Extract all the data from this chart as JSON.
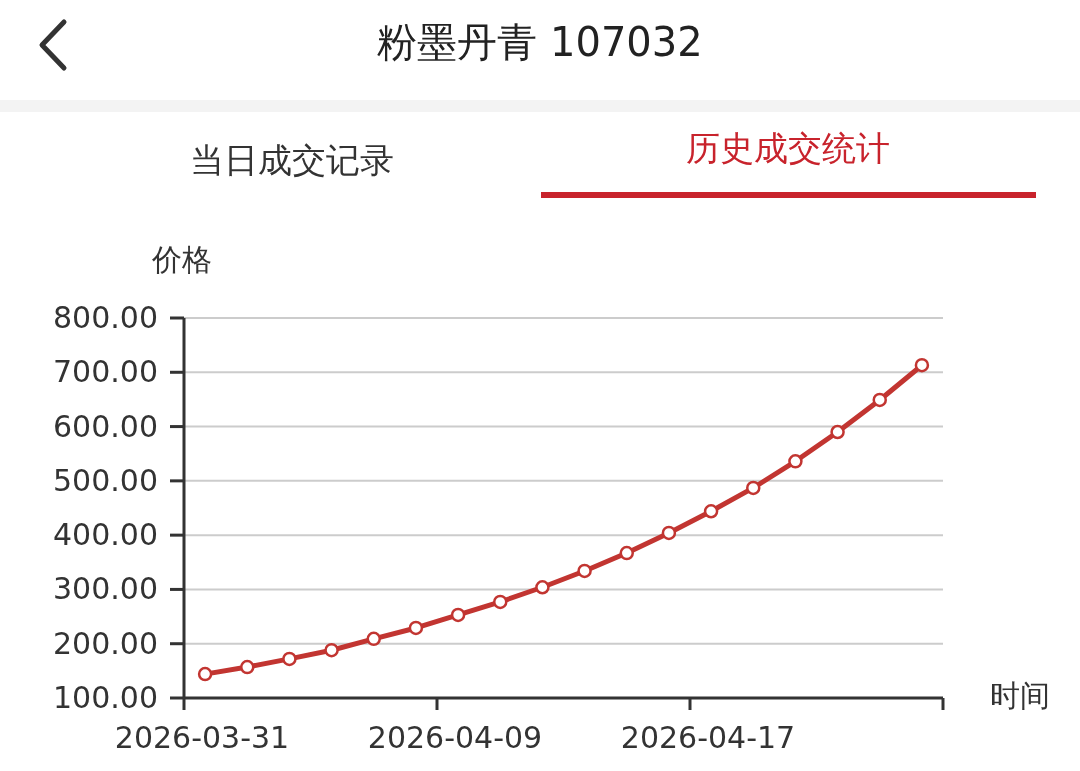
{
  "chart_data": {
    "type": "line",
    "title": "粉墨丹青 107032",
    "annotations": [
      "当日成交记录",
      "历史成交统计"
    ],
    "xlabel": "时间",
    "ylabel": "价格",
    "categories": [
      "2026-03-31",
      null,
      null,
      null,
      null,
      null,
      "2026-04-09",
      null,
      null,
      null,
      null,
      null,
      "2026-04-17",
      null,
      null,
      null,
      null,
      null
    ],
    "series": [
      {
        "color": "#c23531",
        "values": [
          144,
          157,
          172,
          188,
          209,
          229,
          253,
          277,
          304,
          334,
          367,
          404,
          444,
          487,
          536,
          590,
          649,
          713
        ]
      }
    ],
    "ylim": [
      100,
      800
    ],
    "yticks": [
      {
        "value": 100,
        "label": "100.00"
      },
      {
        "value": 200,
        "label": "200.00"
      },
      {
        "value": 300,
        "label": "300.00"
      },
      {
        "value": 400,
        "label": "400.00"
      },
      {
        "value": 500,
        "label": "500.00"
      },
      {
        "value": 600,
        "label": "600.00"
      },
      {
        "value": 700,
        "label": "700.00"
      },
      {
        "value": 800,
        "label": "800.00"
      }
    ],
    "grid": "y",
    "marker": "circle",
    "line_style": "solid"
  }
}
